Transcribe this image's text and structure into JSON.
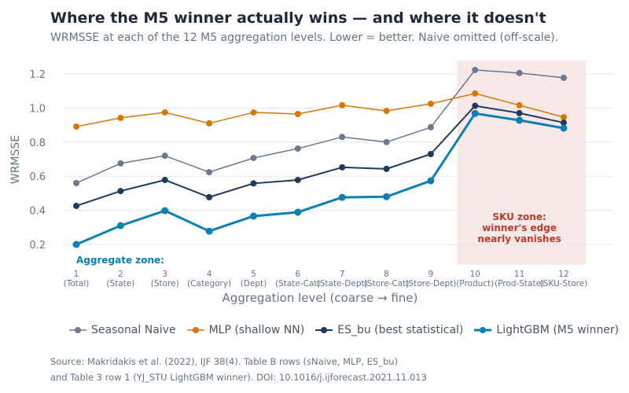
{
  "title": "Where the M5 winner actually wins — and where it doesn't",
  "subtitle": "WRMSSE at each of the 12 M5 aggregation levels. Lower = better. Naive omitted (off-scale).",
  "source": [
    "Source: Makridakis et al. (2022), IJF 38(4). Table B rows (sNaive, MLP, ES_bu)",
    "and Table 3 row 1 (YJ_STU LightGBM winner). DOI: 10.1016/j.ijforecast.2021.11.013"
  ],
  "chart_data": {
    "type": "line",
    "xlabel": "Aggregation level (coarse → fine)",
    "ylabel": "WRMSSE",
    "x": [
      1,
      2,
      3,
      4,
      5,
      6,
      7,
      8,
      9,
      10,
      11,
      12
    ],
    "x_sublabels": [
      "(Total)",
      "(State)",
      "(Store)",
      "(Category)",
      "(Dept)",
      "(State-Cat)",
      "(State-Dept)",
      "(Store-Cat)",
      "(Store-Dept)",
      "(Product)",
      "(Prod-State)",
      "(SKU-Store)"
    ],
    "yticks": [
      0.2,
      0.4,
      0.6,
      0.8,
      1.0,
      1.2
    ],
    "ytick_labels": [
      "0.2",
      "0.4",
      "0.6",
      "0.8",
      "1.0",
      "1.2"
    ],
    "ylim": [
      0.15,
      1.27
    ],
    "grid": true,
    "legend_position": "bottom",
    "series": [
      {
        "name": "Seasonal Naive",
        "color": "#6b7890",
        "width": 1.5,
        "values": [
          0.56,
          0.675,
          0.72,
          0.624,
          0.707,
          0.762,
          0.83,
          0.8,
          0.887,
          1.223,
          1.205,
          1.177
        ]
      },
      {
        "name": "MLP (shallow NN)",
        "color": "#d97706",
        "width": 1.5,
        "values": [
          0.891,
          0.942,
          0.974,
          0.91,
          0.974,
          0.965,
          1.016,
          0.983,
          1.025,
          1.085,
          1.016,
          0.946
        ]
      },
      {
        "name": "ES_bu (best statistical)",
        "color": "#1e3a5f",
        "width": 2,
        "values": [
          0.426,
          0.513,
          0.578,
          0.477,
          0.558,
          0.578,
          0.652,
          0.643,
          0.73,
          1.013,
          0.97,
          0.914
        ]
      },
      {
        "name": "LightGBM (M5 winner)",
        "color": "#0e7fb3",
        "width": 3,
        "values": [
          0.2,
          0.31,
          0.398,
          0.278,
          0.366,
          0.389,
          0.476,
          0.48,
          0.573,
          0.968,
          0.928,
          0.882
        ]
      }
    ],
    "annotations": [
      {
        "text": "Aggregate zone:",
        "color": "#0e7fb3"
      },
      {
        "text": [
          "SKU zone:",
          "winner's edge",
          "nearly vanishes"
        ],
        "color": "#c0392b",
        "shaded_x_range": [
          9.6,
          12.5
        ],
        "shade_color": "#f9e8e8"
      }
    ]
  }
}
